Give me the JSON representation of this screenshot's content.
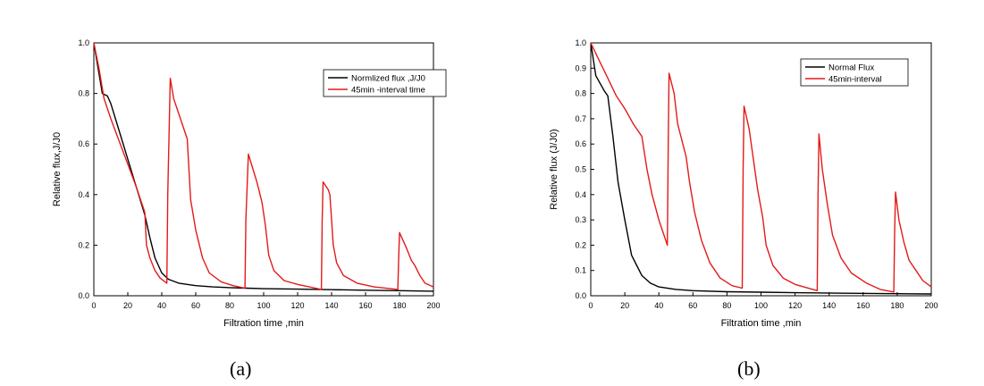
{
  "chart_data": [
    {
      "type": "line",
      "caption": "(a)",
      "xlabel": "Filtration time ,min",
      "ylabel": "Relative flux,J/J0",
      "xlim": [
        0,
        200
      ],
      "ylim": [
        0,
        1.0
      ],
      "xticks": [
        0,
        20,
        40,
        60,
        80,
        100,
        120,
        140,
        160,
        180,
        200
      ],
      "yticks": [
        0.0,
        0.2,
        0.4,
        0.6,
        0.8,
        1.0
      ],
      "ytick_decimals": 1,
      "legend_position": "top-right",
      "grid": false,
      "series": [
        {
          "name": "Normlized flux ,J/J0",
          "color": "#000000",
          "points": [
            [
              0,
              1.0
            ],
            [
              2,
              0.92
            ],
            [
              5,
              0.8
            ],
            [
              8,
              0.79
            ],
            [
              10,
              0.76
            ],
            [
              15,
              0.65
            ],
            [
              20,
              0.54
            ],
            [
              25,
              0.43
            ],
            [
              30,
              0.32
            ],
            [
              33,
              0.23
            ],
            [
              36,
              0.15
            ],
            [
              40,
              0.09
            ],
            [
              44,
              0.065
            ],
            [
              50,
              0.05
            ],
            [
              60,
              0.04
            ],
            [
              70,
              0.035
            ],
            [
              80,
              0.032
            ],
            [
              90,
              0.03
            ],
            [
              100,
              0.028
            ],
            [
              120,
              0.026
            ],
            [
              140,
              0.024
            ],
            [
              160,
              0.022
            ],
            [
              180,
              0.02
            ],
            [
              200,
              0.018
            ]
          ]
        },
        {
          "name": "45min -interval time",
          "color": "#e41a1a",
          "points": [
            [
              0,
              1.0
            ],
            [
              3,
              0.9
            ],
            [
              6,
              0.78
            ],
            [
              10,
              0.7
            ],
            [
              15,
              0.61
            ],
            [
              20,
              0.52
            ],
            [
              25,
              0.43
            ],
            [
              29,
              0.35
            ],
            [
              30,
              0.33
            ],
            [
              31,
              0.2
            ],
            [
              33,
              0.15
            ],
            [
              36,
              0.1
            ],
            [
              39,
              0.07
            ],
            [
              43,
              0.05
            ],
            [
              43.5,
              0.4
            ],
            [
              45,
              0.86
            ],
            [
              47,
              0.78
            ],
            [
              55,
              0.62
            ],
            [
              57,
              0.38
            ],
            [
              60,
              0.26
            ],
            [
              64,
              0.15
            ],
            [
              68,
              0.09
            ],
            [
              75,
              0.055
            ],
            [
              82,
              0.04
            ],
            [
              89,
              0.03
            ],
            [
              89.5,
              0.3
            ],
            [
              91,
              0.56
            ],
            [
              96,
              0.45
            ],
            [
              99,
              0.37
            ],
            [
              101,
              0.28
            ],
            [
              103,
              0.16
            ],
            [
              106,
              0.1
            ],
            [
              112,
              0.06
            ],
            [
              120,
              0.045
            ],
            [
              134,
              0.025
            ],
            [
              134.5,
              0.3
            ],
            [
              135,
              0.45
            ],
            [
              138,
              0.42
            ],
            [
              139,
              0.4
            ],
            [
              141,
              0.2
            ],
            [
              143,
              0.13
            ],
            [
              147,
              0.08
            ],
            [
              155,
              0.05
            ],
            [
              165,
              0.035
            ],
            [
              179,
              0.025
            ],
            [
              179.5,
              0.15
            ],
            [
              180,
              0.25
            ],
            [
              184,
              0.19
            ],
            [
              187,
              0.14
            ],
            [
              189,
              0.12
            ],
            [
              192,
              0.08
            ],
            [
              195,
              0.05
            ],
            [
              200,
              0.035
            ]
          ]
        }
      ]
    },
    {
      "type": "line",
      "caption": "(b)",
      "xlabel": "Filtration time ,min",
      "ylabel": "Relative flux (J/J0)",
      "xlim": [
        0,
        200
      ],
      "ylim": [
        0,
        1.0
      ],
      "xticks": [
        0,
        20,
        40,
        60,
        80,
        100,
        120,
        140,
        160,
        180,
        200
      ],
      "yticks": [
        0.0,
        0.1,
        0.2,
        0.3,
        0.4,
        0.5,
        0.6,
        0.7,
        0.8,
        0.9,
        1.0
      ],
      "ytick_decimals": 1,
      "legend_position": "top-right",
      "grid": false,
      "series": [
        {
          "name": "Normal Flux",
          "color": "#000000",
          "points": [
            [
              0,
              1.0
            ],
            [
              3,
              0.87
            ],
            [
              8,
              0.81
            ],
            [
              10,
              0.79
            ],
            [
              13,
              0.63
            ],
            [
              16,
              0.45
            ],
            [
              20,
              0.3
            ],
            [
              24,
              0.16
            ],
            [
              27,
              0.12
            ],
            [
              30,
              0.08
            ],
            [
              35,
              0.05
            ],
            [
              40,
              0.035
            ],
            [
              50,
              0.025
            ],
            [
              60,
              0.02
            ],
            [
              80,
              0.016
            ],
            [
              100,
              0.014
            ],
            [
              120,
              0.012
            ],
            [
              150,
              0.01
            ],
            [
              180,
              0.008
            ],
            [
              200,
              0.007
            ]
          ]
        },
        {
          "name": "45min-interval",
          "color": "#e41a1a",
          "points": [
            [
              0,
              1.0
            ],
            [
              5,
              0.93
            ],
            [
              10,
              0.86
            ],
            [
              15,
              0.79
            ],
            [
              20,
              0.74
            ],
            [
              25,
              0.68
            ],
            [
              30,
              0.63
            ],
            [
              33,
              0.5
            ],
            [
              36,
              0.4
            ],
            [
              40,
              0.3
            ],
            [
              43,
              0.24
            ],
            [
              45,
              0.2
            ],
            [
              45.5,
              0.6
            ],
            [
              46,
              0.88
            ],
            [
              49,
              0.8
            ],
            [
              51,
              0.68
            ],
            [
              56,
              0.55
            ],
            [
              58,
              0.45
            ],
            [
              61,
              0.33
            ],
            [
              65,
              0.22
            ],
            [
              70,
              0.13
            ],
            [
              76,
              0.07
            ],
            [
              83,
              0.04
            ],
            [
              89,
              0.03
            ],
            [
              89.5,
              0.5
            ],
            [
              90,
              0.75
            ],
            [
              93,
              0.66
            ],
            [
              98,
              0.42
            ],
            [
              101,
              0.31
            ],
            [
              103,
              0.2
            ],
            [
              107,
              0.12
            ],
            [
              113,
              0.07
            ],
            [
              120,
              0.045
            ],
            [
              133,
              0.02
            ],
            [
              133.5,
              0.4
            ],
            [
              134,
              0.64
            ],
            [
              136,
              0.5
            ],
            [
              139,
              0.36
            ],
            [
              142,
              0.24
            ],
            [
              147,
              0.15
            ],
            [
              153,
              0.09
            ],
            [
              162,
              0.05
            ],
            [
              170,
              0.025
            ],
            [
              178,
              0.015
            ],
            [
              178.5,
              0.25
            ],
            [
              179,
              0.41
            ],
            [
              181,
              0.3
            ],
            [
              184,
              0.21
            ],
            [
              187,
              0.14
            ],
            [
              191,
              0.1
            ],
            [
              195,
              0.06
            ],
            [
              200,
              0.035
            ]
          ]
        }
      ]
    }
  ]
}
